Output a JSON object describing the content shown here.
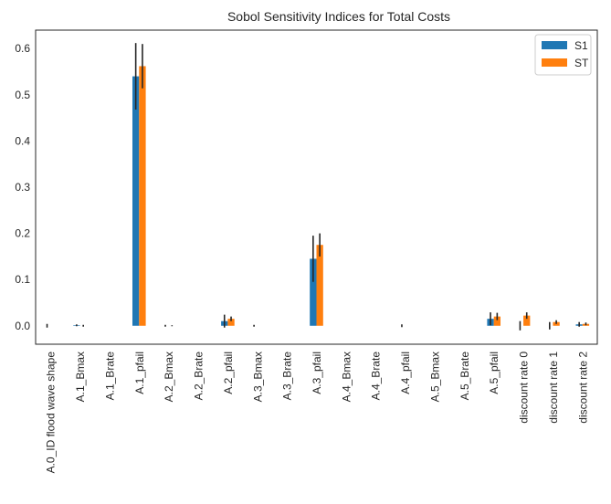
{
  "chart_data": {
    "type": "bar",
    "title": "Sobol Sensitivity Indices for Total Costs",
    "xlabel": "",
    "ylabel": "",
    "categories": [
      "A.0_ID flood wave shape",
      "A.1_Bmax",
      "A.1_Brate",
      "A.1_pfail",
      "A.2_Bmax",
      "A.2_Brate",
      "A.2_pfail",
      "A.3_Bmax",
      "A.3_Brate",
      "A.3_pfail",
      "A.4_Bmax",
      "A.4_Brate",
      "A.4_pfail",
      "A.5_Bmax",
      "A.5_Brate",
      "A.5_pfail",
      "discount rate 0",
      "discount rate 1",
      "discount rate 2"
    ],
    "series": [
      {
        "name": "S1",
        "color": "#1f77b4",
        "values": [
          0.0,
          0.001,
          0.0,
          0.54,
          0.0,
          0.0,
          0.01,
          0.0,
          0.0,
          0.145,
          0.0,
          0.0,
          0.0,
          0.0,
          0.0,
          0.015,
          0.0,
          0.0,
          0.003
        ],
        "errors": [
          0.004,
          0.002,
          0.0,
          0.072,
          0.002,
          0.0,
          0.014,
          0.002,
          0.0,
          0.05,
          0.0,
          0.0,
          0.003,
          0.0,
          0.0,
          0.014,
          0.01,
          0.008,
          0.005
        ]
      },
      {
        "name": "ST",
        "color": "#ff7f0e",
        "values": [
          0.0,
          0.0,
          0.0,
          0.562,
          0.0,
          0.0,
          0.015,
          0.0,
          0.0,
          0.175,
          0.0,
          0.0,
          0.0,
          0.0,
          0.0,
          0.02,
          0.022,
          0.008,
          0.004
        ],
        "errors": [
          0.0,
          0.002,
          0.0,
          0.048,
          0.001,
          0.0,
          0.005,
          0.0,
          0.0,
          0.025,
          0.0,
          0.0,
          0.0,
          0.0,
          0.0,
          0.008,
          0.007,
          0.004,
          0.003
        ]
      }
    ],
    "ylim": [
      -0.04,
      0.64
    ],
    "yticks": [
      0.0,
      0.1,
      0.2,
      0.3,
      0.4,
      0.5,
      0.6
    ],
    "ytick_labels": [
      "0.0",
      "0.1",
      "0.2",
      "0.3",
      "0.4",
      "0.5",
      "0.6"
    ],
    "grid": false,
    "legend_position": "top-right",
    "error_bar_color": "#262626"
  }
}
